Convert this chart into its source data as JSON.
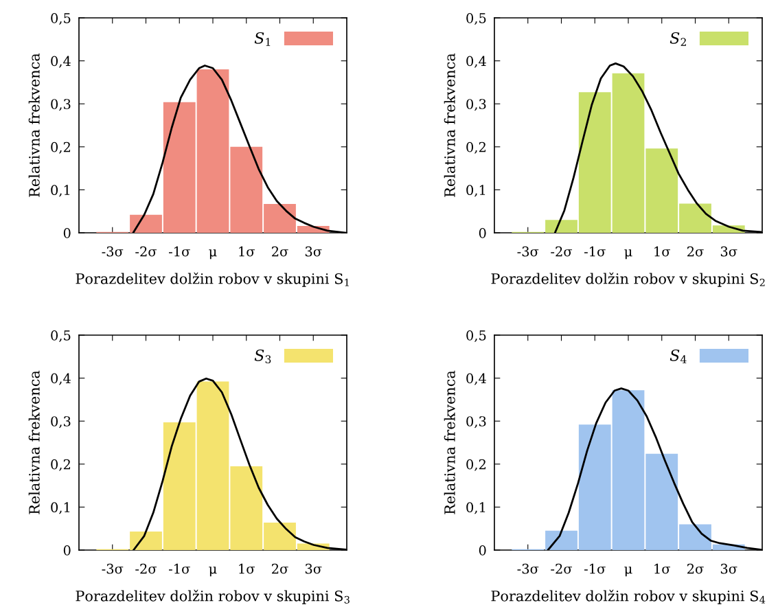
{
  "chart_data": [
    {
      "type": "histogram",
      "xlabel": "Porazdelitev dolžin robov v skupini S$_{1}$",
      "ylabel": "Relativna frekvenca",
      "bins": [
        -3.5,
        -2.5,
        -1.5,
        -0.5,
        0.5,
        1.5,
        2.5,
        3.5
      ],
      "xlim": [
        -4,
        4
      ],
      "xticks": [
        {
          "value": -3,
          "label": "-3σ"
        },
        {
          "value": -2,
          "label": "-2σ"
        },
        {
          "value": -1,
          "label": "-1σ"
        },
        {
          "value": 0,
          "label": "μ"
        },
        {
          "value": 1,
          "label": "1σ"
        },
        {
          "value": 2,
          "label": "2σ"
        },
        {
          "value": 3,
          "label": "3σ"
        }
      ],
      "ylim": [
        0,
        0.5
      ],
      "yticks": [
        0,
        {
          "value": 0.1,
          "label": "0,1"
        },
        {
          "value": 0.2,
          "label": "0,2"
        },
        {
          "value": 0.3,
          "label": "0,3"
        },
        {
          "value": 0.4,
          "label": "0,4"
        },
        {
          "value": 0.5,
          "label": "0,5"
        }
      ],
      "legend": "top right",
      "grid": false,
      "series": [
        {
          "name": "S$_{1}$",
          "color": "#f08c80",
          "values": [
            0.002,
            0.042,
            0.304,
            0.38,
            0.2,
            0.067,
            0.016
          ]
        },
        {
          "type": "line",
          "color": "#000000",
          "x": [
            -2.38,
            -2.05,
            -1.78,
            -1.5,
            -1.23,
            -0.96,
            -0.68,
            -0.41,
            -0.24,
            0,
            0.27,
            0.55,
            0.82,
            1.09,
            1.37,
            1.64,
            1.91,
            2.19,
            2.46,
            2.73,
            3.01,
            3.42,
            3.96
          ],
          "values": [
            0,
            0.042,
            0.09,
            0.164,
            0.244,
            0.314,
            0.356,
            0.383,
            0.389,
            0.383,
            0.356,
            0.308,
            0.255,
            0.202,
            0.148,
            0.106,
            0.074,
            0.051,
            0.033,
            0.023,
            0.014,
            0.005,
            0
          ]
        }
      ]
    },
    {
      "type": "histogram",
      "xlabel": "Porazdelitev dolžin robov v skupini S$_{2}$",
      "ylabel": "Relativna frekvenca",
      "bins": [
        -3.5,
        -2.5,
        -1.5,
        -0.5,
        0.5,
        1.5,
        2.5,
        3.5
      ],
      "xlim": [
        -4,
        4
      ],
      "xticks": [
        {
          "value": -3,
          "label": "-3σ"
        },
        {
          "value": -2,
          "label": "-2σ"
        },
        {
          "value": -1,
          "label": "-1σ"
        },
        {
          "value": 0,
          "label": "μ"
        },
        {
          "value": 1,
          "label": "1σ"
        },
        {
          "value": 2,
          "label": "2σ"
        },
        {
          "value": 3,
          "label": "3σ"
        }
      ],
      "ylim": [
        0,
        0.5
      ],
      "yticks": [
        0,
        {
          "value": 0.1,
          "label": "0,1"
        },
        {
          "value": 0.2,
          "label": "0,2"
        },
        {
          "value": 0.3,
          "label": "0,3"
        },
        {
          "value": 0.4,
          "label": "0,4"
        },
        {
          "value": 0.5,
          "label": "0,5"
        }
      ],
      "legend": "top right",
      "grid": false,
      "series": [
        {
          "name": "S$_{2}$",
          "color": "#c9e06a",
          "values": [
            0.002,
            0.03,
            0.327,
            0.371,
            0.196,
            0.068,
            0.017
          ]
        },
        {
          "type": "line",
          "color": "#000000",
          "x": [
            -2.19,
            -1.91,
            -1.64,
            -1.37,
            -1.09,
            -0.82,
            -0.55,
            -0.38,
            -0.14,
            0.14,
            0.41,
            0.68,
            0.96,
            1.23,
            1.5,
            1.78,
            2.05,
            2.32,
            2.6,
            3.01,
            3.42,
            3.96
          ],
          "values": [
            0,
            0.052,
            0.127,
            0.212,
            0.298,
            0.359,
            0.389,
            0.394,
            0.387,
            0.364,
            0.33,
            0.287,
            0.234,
            0.186,
            0.138,
            0.1,
            0.068,
            0.044,
            0.028,
            0.014,
            0.005,
            0.002
          ]
        }
      ]
    },
    {
      "type": "histogram",
      "xlabel": "Porazdelitev dolžin robov v skupini S$_{3}$",
      "ylabel": "Relativna frekvenca",
      "bins": [
        -3.5,
        -2.5,
        -1.5,
        -0.5,
        0.5,
        1.5,
        2.5,
        3.5
      ],
      "xlim": [
        -4,
        4
      ],
      "xticks": [
        {
          "value": -3,
          "label": "-3σ"
        },
        {
          "value": -2,
          "label": "-2σ"
        },
        {
          "value": -1,
          "label": "-1σ"
        },
        {
          "value": 0,
          "label": "μ"
        },
        {
          "value": 1,
          "label": "1σ"
        },
        {
          "value": 2,
          "label": "2σ"
        },
        {
          "value": 3,
          "label": "3σ"
        }
      ],
      "ylim": [
        0,
        0.5
      ],
      "yticks": [
        0,
        {
          "value": 0.1,
          "label": "0,1"
        },
        {
          "value": 0.2,
          "label": "0,2"
        },
        {
          "value": 0.3,
          "label": "0,3"
        },
        {
          "value": 0.4,
          "label": "0,4"
        },
        {
          "value": 0.5,
          "label": "0,5"
        }
      ],
      "legend": "top right",
      "grid": false,
      "series": [
        {
          "name": "S$_{3}$",
          "color": "#f4e36e",
          "values": [
            0.002,
            0.043,
            0.297,
            0.392,
            0.195,
            0.064,
            0.015
          ]
        },
        {
          "type": "line",
          "color": "#000000",
          "x": [
            -2.37,
            -2.05,
            -1.78,
            -1.5,
            -1.23,
            -0.96,
            -0.68,
            -0.41,
            -0.2,
            0,
            0.27,
            0.55,
            0.82,
            1.09,
            1.37,
            1.64,
            1.91,
            2.19,
            2.46,
            2.73,
            3.01,
            3.42,
            3.96
          ],
          "values": [
            0,
            0.033,
            0.087,
            0.161,
            0.241,
            0.305,
            0.359,
            0.392,
            0.399,
            0.394,
            0.367,
            0.316,
            0.257,
            0.199,
            0.145,
            0.105,
            0.073,
            0.049,
            0.03,
            0.02,
            0.012,
            0.005,
            0.001
          ]
        }
      ]
    },
    {
      "type": "histogram",
      "xlabel": "Porazdelitev dolžin robov v skupini S$_{4}$",
      "ylabel": "Relativna frekvenca",
      "bins": [
        -3.5,
        -2.5,
        -1.5,
        -0.5,
        0.5,
        1.5,
        2.5,
        3.5
      ],
      "xlim": [
        -4,
        4
      ],
      "xticks": [
        {
          "value": -3,
          "label": "-3σ"
        },
        {
          "value": -2,
          "label": "-2σ"
        },
        {
          "value": -1,
          "label": "-1σ"
        },
        {
          "value": 0,
          "label": "μ"
        },
        {
          "value": 1,
          "label": "1σ"
        },
        {
          "value": 2,
          "label": "2σ"
        },
        {
          "value": 3,
          "label": "3σ"
        }
      ],
      "ylim": [
        0,
        0.5
      ],
      "yticks": [
        0,
        {
          "value": 0.1,
          "label": "0,1"
        },
        {
          "value": 0.2,
          "label": "0,2"
        },
        {
          "value": 0.3,
          "label": "0,3"
        },
        {
          "value": 0.4,
          "label": "0,4"
        },
        {
          "value": 0.5,
          "label": "0,5"
        }
      ],
      "legend": "top right",
      "grid": false,
      "series": [
        {
          "name": "S$_{4}$",
          "color": "#a0c4ef",
          "values": [
            0.002,
            0.045,
            0.292,
            0.372,
            0.224,
            0.06,
            0.013
          ]
        },
        {
          "type": "line",
          "color": "#000000",
          "x": [
            -2.4,
            -2.05,
            -1.78,
            -1.5,
            -1.23,
            -0.96,
            -0.68,
            -0.41,
            -0.21,
            0,
            0.27,
            0.55,
            0.82,
            1.09,
            1.37,
            1.64,
            1.91,
            2.19,
            2.46,
            2.73,
            3.15,
            3.55,
            3.96
          ],
          "values": [
            0,
            0.033,
            0.087,
            0.156,
            0.231,
            0.295,
            0.343,
            0.371,
            0.376,
            0.371,
            0.348,
            0.311,
            0.263,
            0.209,
            0.156,
            0.108,
            0.065,
            0.038,
            0.022,
            0.016,
            0.011,
            0.005,
            0.001
          ]
        }
      ]
    }
  ]
}
